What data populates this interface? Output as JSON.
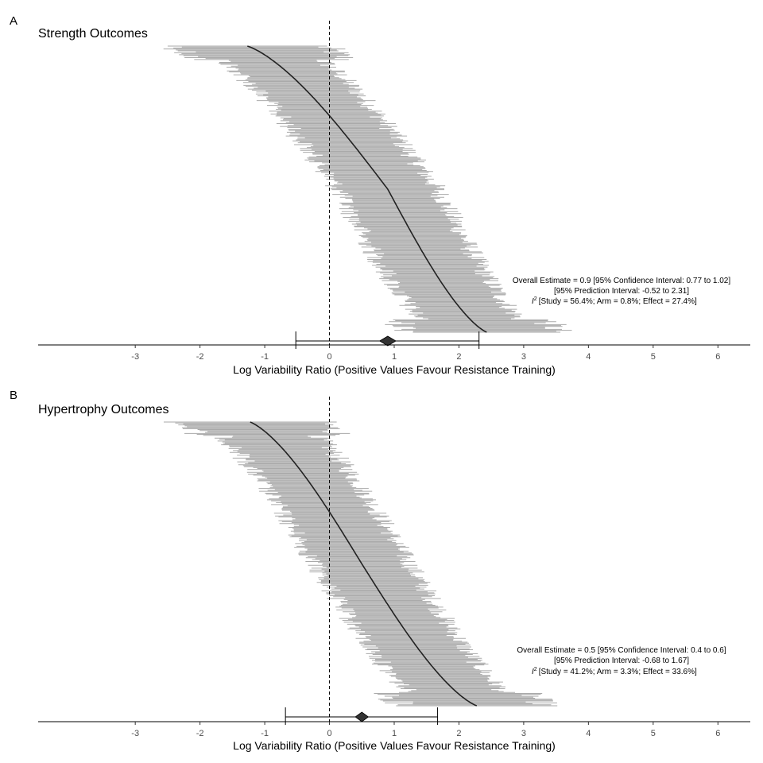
{
  "chart_data": [
    {
      "type": "forest",
      "panel_label": "A",
      "title": "Strength Outcomes",
      "xlabel": "Log Variability Ratio (Positive Values Favour Resistance Training)",
      "xlim": [
        -4.5,
        6.5
      ],
      "xticks": [
        -3,
        -2,
        -1,
        0,
        1,
        2,
        3,
        4,
        5,
        6
      ],
      "reference_line": 0,
      "effect_distribution": {
        "count": 300,
        "min": -1.3,
        "max": 2.45,
        "median": 0.9,
        "typical_ci_halfwidth": 0.75
      },
      "overall": {
        "estimate": 0.9,
        "ci": [
          0.77,
          1.02
        ],
        "pi": [
          -0.52,
          2.31
        ]
      },
      "annotation": [
        "Overall Estimate = 0.9 [95% Confidence Interval: 0.77 to 1.02]",
        "[95% Prediction Interval: -0.52 to 2.31]",
        "[Study = 56.4%; Arm = 0.8%; Effect = 27.4%]"
      ],
      "annotation_i2_label": "I",
      "annotation_i2_sup": "2",
      "colors": {
        "interval": "#aaaaaa",
        "point": "#222222",
        "diamond": "#333333"
      }
    },
    {
      "type": "forest",
      "panel_label": "B",
      "title": "Hypertrophy Outcomes",
      "xlabel": "Log Variability Ratio (Positive Values Favour Resistance Training)",
      "xlim": [
        -4.5,
        6.5
      ],
      "xticks": [
        -3,
        -2,
        -1,
        0,
        1,
        2,
        3,
        4,
        5,
        6
      ],
      "reference_line": 0,
      "effect_distribution": {
        "count": 300,
        "min": -1.25,
        "max": 2.3,
        "median": 0.5,
        "typical_ci_halfwidth": 0.72
      },
      "overall": {
        "estimate": 0.5,
        "ci": [
          0.4,
          0.6
        ],
        "pi": [
          -0.68,
          1.67
        ]
      },
      "annotation": [
        "Overall Estimate = 0.5 [95% Confidence Interval: 0.4 to 0.6]",
        "[95% Prediction Interval: -0.68 to 1.67]",
        "[Study = 41.2%; Arm = 3.3%; Effect = 33.6%]"
      ],
      "annotation_i2_label": "I",
      "annotation_i2_sup": "2",
      "colors": {
        "interval": "#aaaaaa",
        "point": "#222222",
        "diamond": "#333333"
      }
    }
  ]
}
